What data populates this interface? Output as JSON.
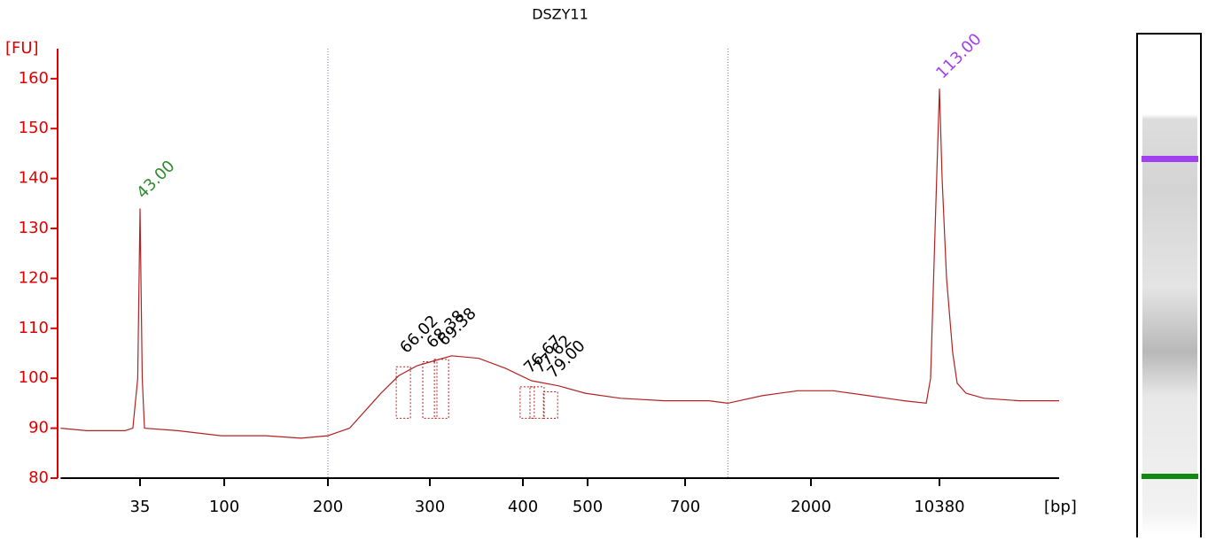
{
  "chart_data": {
    "type": "line",
    "title": "DSZY11",
    "y_label": "[FU]",
    "x_label": "[bp]",
    "color": "#b22222",
    "axis_color": "#e00000",
    "ylim": [
      80,
      166
    ],
    "yticks": [
      80,
      90,
      100,
      110,
      120,
      130,
      140,
      150,
      160
    ],
    "xlim": [
      13,
      48100
    ],
    "xticks": [
      35,
      100,
      200,
      300,
      400,
      500,
      700,
      2000,
      10380
    ],
    "dotted_lines": [
      200,
      1000
    ],
    "x": [
      13,
      18,
      29,
      32,
      34,
      35,
      36,
      37,
      56,
      96,
      132,
      167,
      200,
      218,
      230,
      247,
      265,
      285,
      304,
      321,
      349,
      379,
      412,
      452,
      496,
      560,
      652,
      855,
      1000,
      1332,
      1790,
      2660,
      4185,
      6592,
      8760,
      9265,
      9816,
      10380,
      10740,
      11370,
      12310,
      13030,
      14600,
      18330,
      28880,
      48100
    ],
    "values": [
      90,
      89.5,
      89.5,
      90,
      100,
      134,
      100,
      90,
      89.5,
      88.5,
      88.5,
      88,
      88.5,
      90,
      93,
      97,
      100.5,
      102.5,
      103.5,
      104.5,
      104,
      102,
      99.5,
      98.5,
      97,
      96,
      95.5,
      95.5,
      95,
      96.5,
      97.5,
      97.5,
      96.5,
      95.5,
      95,
      100,
      130,
      158,
      140,
      120,
      105,
      99,
      97,
      96,
      95.5,
      95.5
    ],
    "annotations": [
      {
        "label": "43.00",
        "x": 35,
        "y": 134,
        "color": "#2e8b2e"
      },
      {
        "label": "66.02",
        "x": 270,
        "y": 103,
        "color": "#000000"
      },
      {
        "label": "68.38",
        "x": 300,
        "y": 104,
        "color": "#000000"
      },
      {
        "label": "69.38",
        "x": 311,
        "y": 104.5,
        "color": "#000000"
      },
      {
        "label": "76.67",
        "x": 406,
        "y": 99,
        "color": "#000000"
      },
      {
        "label": "77.62",
        "x": 420,
        "y": 99,
        "color": "#000000"
      },
      {
        "label": "79.00",
        "x": 440,
        "y": 98,
        "color": "#000000"
      },
      {
        "label": "113.00",
        "x": 10380,
        "y": 158,
        "color": "#a040f0"
      }
    ]
  }
}
